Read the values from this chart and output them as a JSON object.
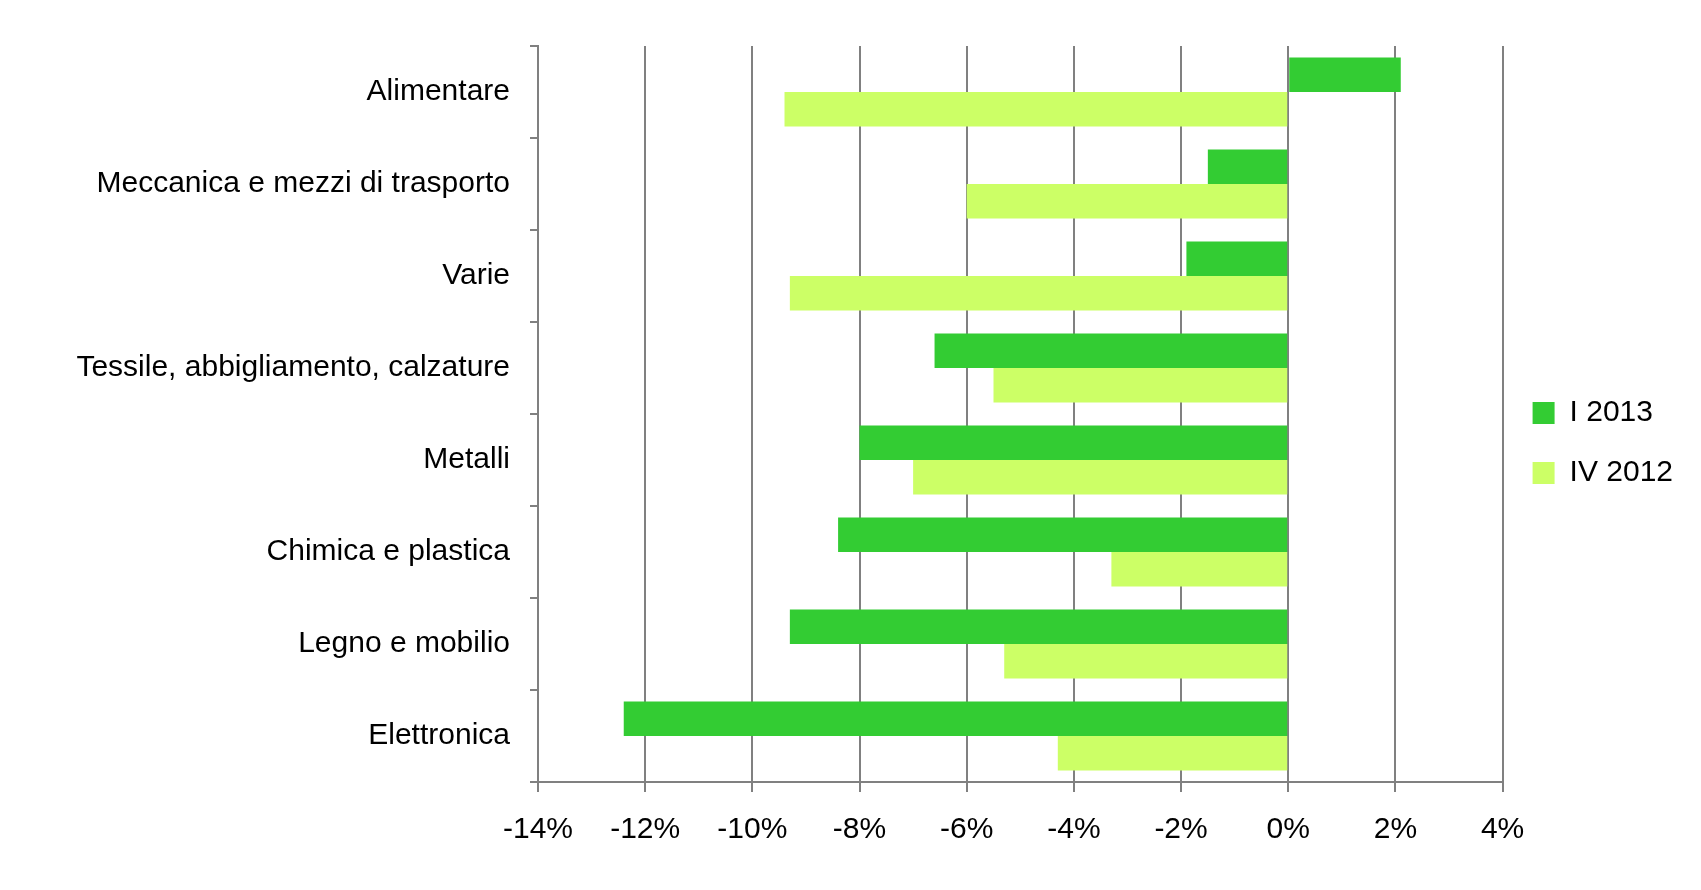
{
  "chart_data": {
    "type": "bar",
    "orientation": "horizontal",
    "categories": [
      "Alimentare",
      "Meccanica e mezzi di trasporto",
      "Varie",
      "Tessile, abbigliamento, calzature",
      "Metalli",
      "Chimica e plastica",
      "Legno e mobilio",
      "Elettronica"
    ],
    "series": [
      {
        "name": "I 2013",
        "color": "#33cc33",
        "values": [
          2.1,
          -1.5,
          -1.9,
          -6.6,
          -8.0,
          -8.4,
          -9.3,
          -12.4
        ]
      },
      {
        "name": "IV 2012",
        "color": "#ccff66",
        "values": [
          -9.4,
          -6.0,
          -9.3,
          -5.5,
          -7.0,
          -3.3,
          -5.3,
          -4.3
        ]
      }
    ],
    "xlim": [
      -14,
      4
    ],
    "xticks": [
      {
        "value": -14,
        "label": "-14%"
      },
      {
        "value": -12,
        "label": "-12%"
      },
      {
        "value": -10,
        "label": "-10%"
      },
      {
        "value": -8,
        "label": "-8%"
      },
      {
        "value": -6,
        "label": "-6%"
      },
      {
        "value": -4,
        "label": "-4%"
      },
      {
        "value": -2,
        "label": "-2%"
      },
      {
        "value": 0,
        "label": "0%"
      },
      {
        "value": 2,
        "label": "2%"
      },
      {
        "value": 4,
        "label": "4%"
      }
    ],
    "grid": "x",
    "legend": "right"
  }
}
